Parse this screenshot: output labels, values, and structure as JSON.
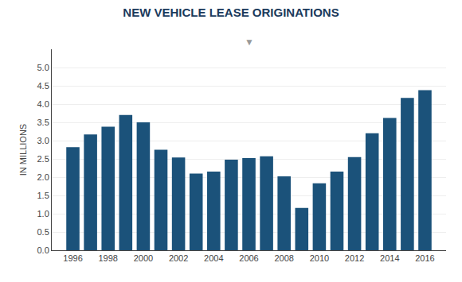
{
  "chart_data": {
    "type": "bar",
    "title": "NEW VEHICLE LEASE ORIGINATIONS",
    "ylabel": "IN MILLIONS",
    "annotations": [
      "▼"
    ],
    "x": [
      1996,
      1997,
      1998,
      1999,
      2000,
      2001,
      2002,
      2003,
      2004,
      2005,
      2006,
      2007,
      2008,
      2009,
      2010,
      2011,
      2012,
      2013,
      2014,
      2015,
      2016
    ],
    "values": [
      2.82,
      3.17,
      3.38,
      3.7,
      3.5,
      2.75,
      2.54,
      2.1,
      2.15,
      2.48,
      2.52,
      2.57,
      2.02,
      1.16,
      1.83,
      2.15,
      2.55,
      3.2,
      3.62,
      4.17,
      4.38
    ],
    "color": "#1b527a",
    "xlim": [
      1994.8,
      2017.2
    ],
    "xticks": [
      1996,
      1998,
      2000,
      2002,
      2004,
      2006,
      2008,
      2010,
      2012,
      2014,
      2016
    ],
    "ylim": [
      0,
      5.5
    ],
    "yticks": [
      {
        "value": 0,
        "label": "0.0"
      },
      0.5,
      {
        "value": 1,
        "label": "1.0"
      },
      1.5,
      {
        "value": 2,
        "label": "2.0"
      },
      2.5,
      {
        "value": 3,
        "label": "3.0"
      },
      3.5,
      {
        "value": 4,
        "label": "4.0"
      },
      4.5,
      {
        "value": 5,
        "label": "5.0"
      }
    ],
    "grid": true
  }
}
